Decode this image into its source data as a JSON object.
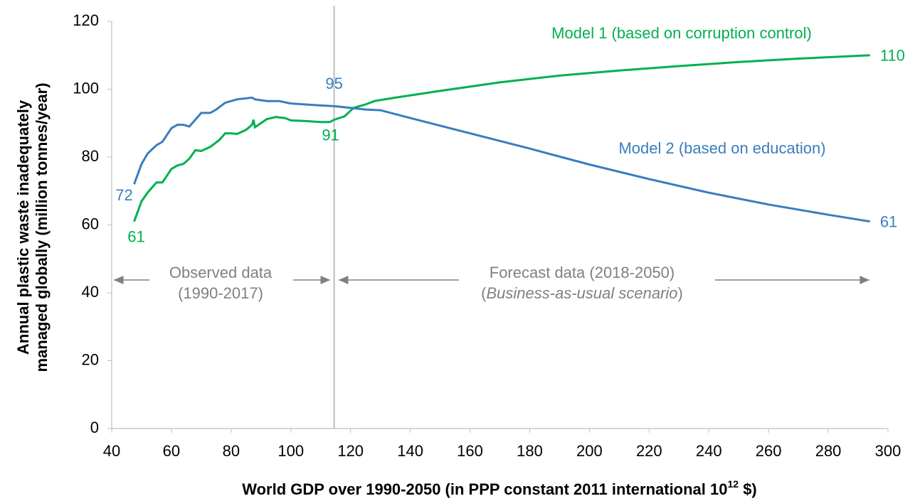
{
  "chart_data": {
    "type": "line",
    "x_label": {
      "text": "World GDP over 1990-2050 (in PPP constant 2011 international 10",
      "superscript": "12",
      "suffix": " $)"
    },
    "y_label": [
      "Annual plastic waste inadequately",
      "managed globally (million tonnes/year)"
    ],
    "xlim": [
      40,
      300
    ],
    "xticks": [
      40,
      60,
      80,
      100,
      120,
      140,
      160,
      180,
      200,
      220,
      240,
      260,
      280,
      300
    ],
    "ylim": [
      0,
      120
    ],
    "yticks": [
      0,
      20,
      40,
      60,
      80,
      100,
      120
    ],
    "divider_x": 114.5,
    "annotations": {
      "observed": [
        "Observed data",
        "(1990-2017)"
      ],
      "forecast": "Forecast data (2018-2050)",
      "forecast_note": {
        "prefix": "(",
        "italic": "Business-as-usual scenario",
        "suffix": ")"
      }
    },
    "series": [
      {
        "name": "Model 1 (based on corruption control)",
        "color": "#00b050",
        "x": [
          47.5,
          50,
          52,
          55,
          57,
          60,
          62,
          64,
          66,
          68,
          70,
          73,
          76,
          78,
          80,
          82,
          85,
          87,
          87.5,
          88,
          90,
          92,
          95,
          98,
          100,
          105,
          110,
          113,
          114.5,
          118,
          121,
          125,
          128,
          135,
          150,
          170,
          190,
          210,
          230,
          250,
          270,
          294
        ],
        "values": [
          61,
          67,
          69.5,
          72.5,
          72.5,
          76.5,
          77.5,
          78,
          79.5,
          82,
          81.8,
          83,
          85,
          87,
          87,
          86.8,
          88,
          89.5,
          91,
          88.8,
          90,
          91.2,
          91.8,
          91.5,
          90.8,
          90.6,
          90.3,
          90.3,
          91,
          92,
          94.5,
          95.5,
          96.5,
          97.5,
          99.5,
          102,
          104,
          105.5,
          106.8,
          108,
          109,
          110
        ]
      },
      {
        "name": "Model 2 (based on education)",
        "color": "#3a7dbf",
        "x": [
          47.5,
          50,
          52,
          55,
          57,
          60,
          62,
          64,
          66,
          68,
          70,
          73,
          75,
          78,
          82,
          87,
          88,
          92,
          96,
          100,
          105,
          110,
          114.5,
          120,
          125,
          130,
          140,
          160,
          180,
          200,
          220,
          240,
          260,
          280,
          294
        ],
        "values": [
          72,
          78,
          81,
          83.5,
          84.5,
          88.5,
          89.5,
          89.5,
          89,
          91,
          93,
          93,
          94,
          96,
          97,
          97.5,
          97,
          96.5,
          96.5,
          95.8,
          95.5,
          95.2,
          95,
          94.5,
          94,
          93.8,
          91.5,
          87,
          82.5,
          77.8,
          73.5,
          69.5,
          66,
          63,
          61
        ]
      }
    ]
  }
}
